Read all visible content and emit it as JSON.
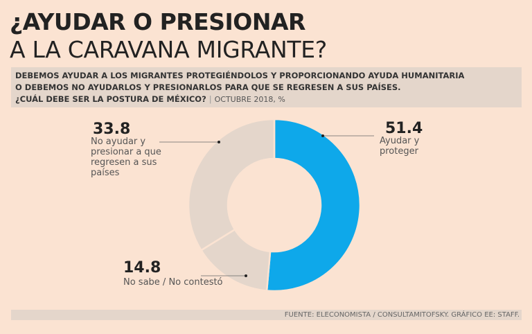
{
  "title_line1": "¿AYUDAR O PRESIONAR",
  "title_line2": "A LA CARAVANA MIGRANTE?",
  "question": {
    "line1": "DEBEMOS AYUDAR A LOS MIGRANTES PROTEGIÉNDOLOS Y PROPORCIONANDO AYUDA HUMANITARIA",
    "line2": "O DEBEMOS NO AYUDARLOS Y PRESIONARLOS PARA QUE SE REGRESEN A SUS PAÍSES.",
    "line3": "¿CUÁL DEBE SER LA POSTURA DE MÉXICO?",
    "meta": "OCTUBRE 2018, %"
  },
  "chart_data": {
    "type": "pie",
    "subtype": "donut",
    "slices": [
      {
        "label": "Ayudar y proteger",
        "label_lines": [
          "Ayudar y",
          "proteger"
        ],
        "value": 51.4,
        "value_text": "51.4",
        "color": "#0ea8ea"
      },
      {
        "label": "No sabe / No contestó",
        "label_lines": [
          "No sabe / No contestó"
        ],
        "value": 14.8,
        "value_text": "14.8",
        "color": "#e4d6cb"
      },
      {
        "label": "No ayudar y presionar a que regresen a sus países",
        "label_lines": [
          "No ayudar y",
          "presionar a que",
          "regresen a sus",
          "países"
        ],
        "value": 33.8,
        "value_text": "33.8",
        "color": "#e4d6cb"
      }
    ],
    "slice_separator_color": "#fbe3d2"
  },
  "footer": "FUENTE: ELECONOMISTA / CONSULTAMITOFSKY. GRÁFICO EE: STAFF."
}
